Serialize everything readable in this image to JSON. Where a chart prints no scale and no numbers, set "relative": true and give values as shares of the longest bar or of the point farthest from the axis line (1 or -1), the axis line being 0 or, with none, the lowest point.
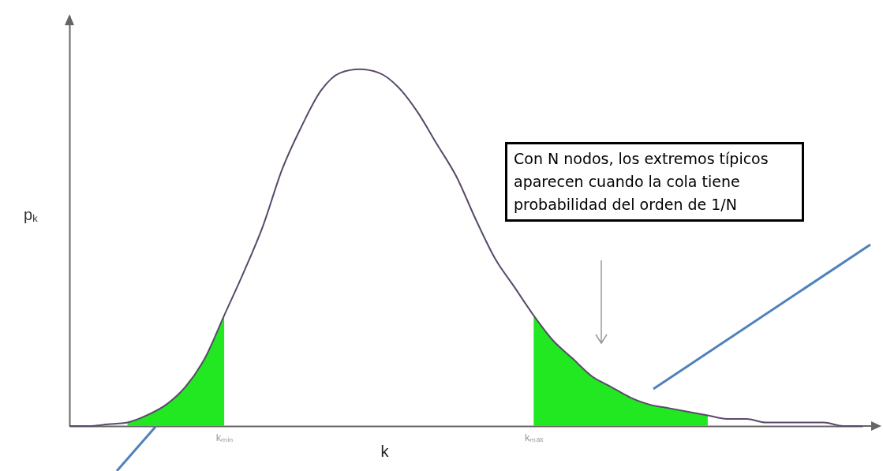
{
  "chart_data": {
    "type": "line",
    "relative": true,
    "xlabel": "k",
    "ylabel": "pₖ",
    "categories": [
      null,
      null,
      null,
      null,
      null,
      null,
      null,
      null,
      "kₘᵢₙ",
      null,
      null,
      null,
      null,
      null,
      null,
      null,
      null,
      null,
      null,
      null,
      null,
      null,
      null,
      null,
      "kₘₐₓ",
      null,
      null,
      null,
      null,
      null,
      null,
      null,
      null,
      null,
      null,
      null,
      null,
      null,
      null,
      null,
      null,
      null
    ],
    "series": [
      {
        "type": "area",
        "color": "#22e822",
        "values": [
          null,
          null,
          null,
          0.01,
          0.03,
          0.06,
          0.11,
          0.19,
          0.31,
          null,
          null,
          null,
          null,
          null,
          null,
          null,
          null,
          null,
          null,
          null,
          null,
          null,
          null,
          null,
          0.31,
          0.24,
          0.19,
          0.14,
          0.11,
          0.08,
          0.06,
          0.05,
          0.04,
          0.03,
          null,
          null,
          null,
          null,
          null,
          null,
          null,
          null
        ]
      },
      {
        "type": "line",
        "color": "#5a4a6a",
        "values": [
          0,
          0,
          0.005,
          0.01,
          0.03,
          0.06,
          0.11,
          0.19,
          0.31,
          0.43,
          0.56,
          0.72,
          0.84,
          0.94,
          0.99,
          1,
          0.99,
          0.95,
          0.88,
          0.79,
          0.7,
          0.58,
          0.47,
          0.39,
          0.31,
          0.24,
          0.19,
          0.14,
          0.11,
          0.08,
          0.06,
          0.05,
          0.04,
          0.03,
          0.02,
          0.02,
          0.01,
          0.01,
          0.01,
          0.01,
          0,
          0
        ]
      }
    ],
    "annotations": [
      "Con N nodos, los extremos típicos aparecen cuando la cola tiene probabilidad del orden de 1/N"
    ]
  }
}
